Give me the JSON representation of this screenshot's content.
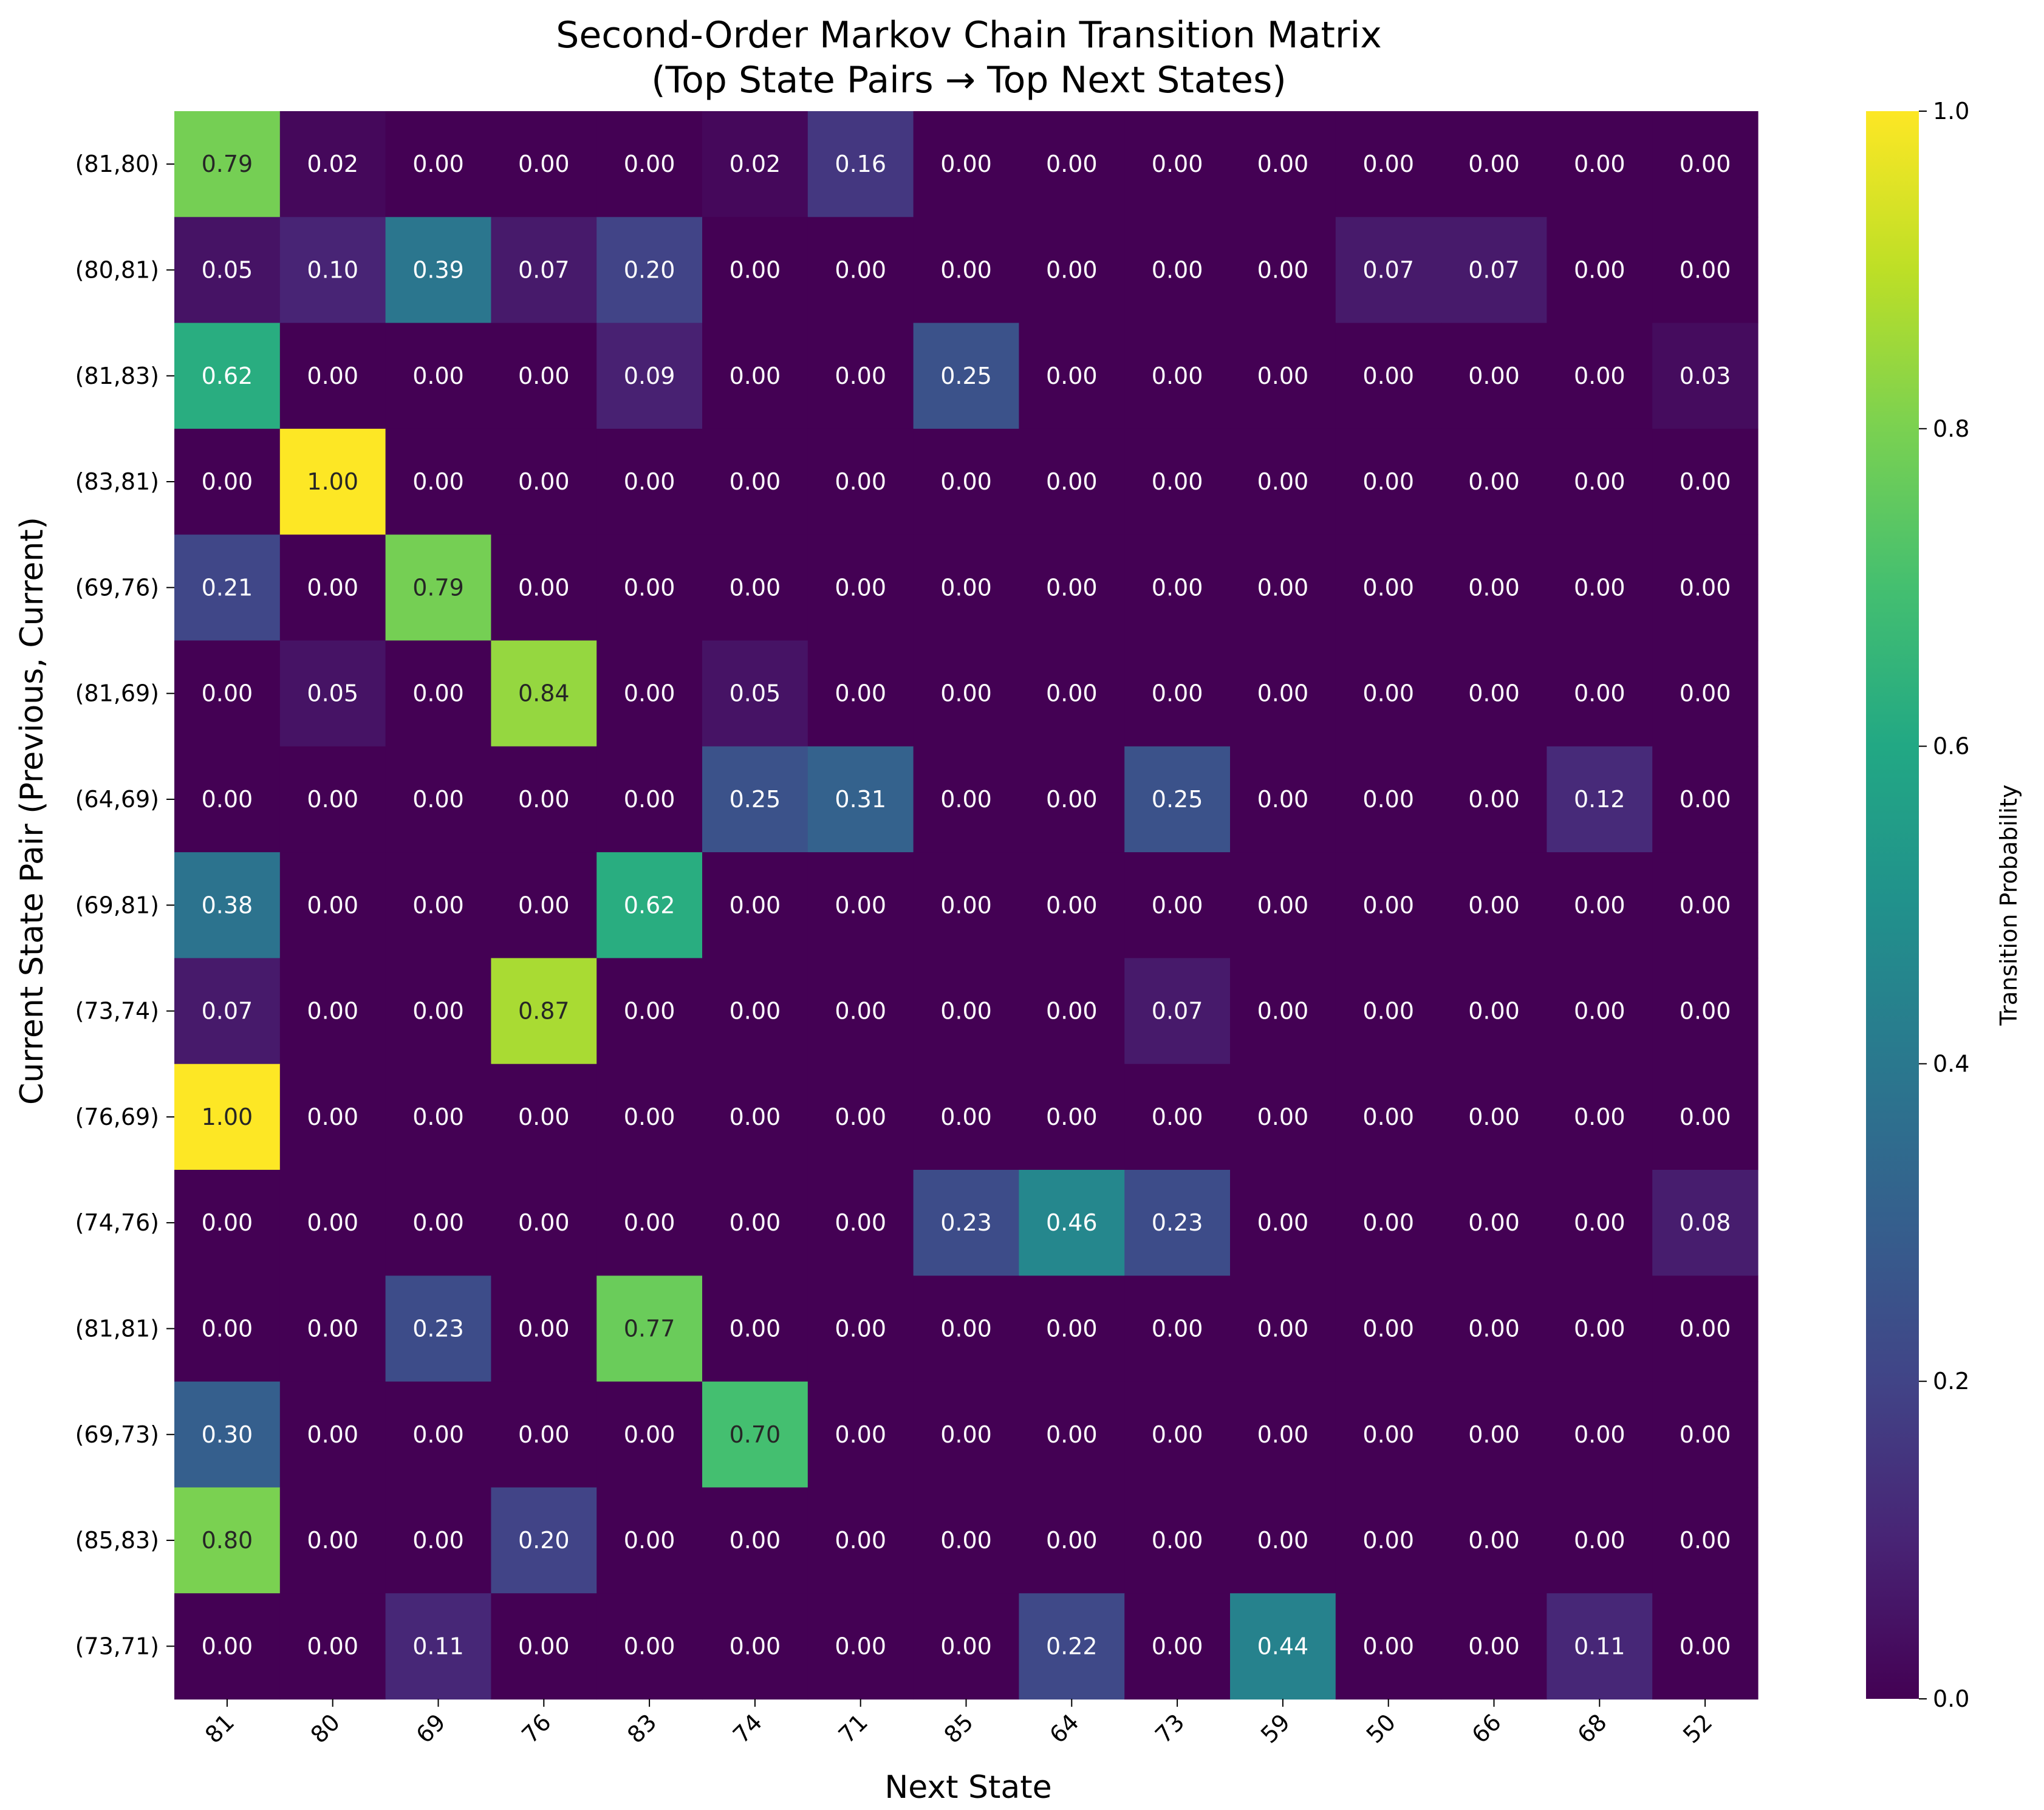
{
  "chart_data": {
    "type": "heatmap",
    "title_lines": [
      "Second-Order Markov Chain Transition Matrix",
      "(Top State Pairs → Top Next States)"
    ],
    "xlabel": "Next State",
    "ylabel": "Current State Pair (Previous, Current)",
    "x_categories": [
      "81",
      "80",
      "69",
      "76",
      "83",
      "74",
      "71",
      "85",
      "64",
      "73",
      "59",
      "50",
      "66",
      "68",
      "52"
    ],
    "y_categories": [
      "(81,80)",
      "(80,81)",
      "(81,83)",
      "(83,81)",
      "(69,76)",
      "(81,69)",
      "(64,69)",
      "(69,81)",
      "(73,74)",
      "(76,69)",
      "(74,76)",
      "(81,81)",
      "(69,73)",
      "(85,83)",
      "(73,71)"
    ],
    "values": [
      [
        0.79,
        0.02,
        0.0,
        0.0,
        0.0,
        0.02,
        0.16,
        0.0,
        0.0,
        0.0,
        0.0,
        0.0,
        0.0,
        0.0,
        0.0
      ],
      [
        0.05,
        0.1,
        0.39,
        0.07,
        0.2,
        0.0,
        0.0,
        0.0,
        0.0,
        0.0,
        0.0,
        0.07,
        0.07,
        0.0,
        0.0
      ],
      [
        0.62,
        0.0,
        0.0,
        0.0,
        0.09,
        0.0,
        0.0,
        0.25,
        0.0,
        0.0,
        0.0,
        0.0,
        0.0,
        0.0,
        0.03
      ],
      [
        0.0,
        1.0,
        0.0,
        0.0,
        0.0,
        0.0,
        0.0,
        0.0,
        0.0,
        0.0,
        0.0,
        0.0,
        0.0,
        0.0,
        0.0
      ],
      [
        0.21,
        0.0,
        0.79,
        0.0,
        0.0,
        0.0,
        0.0,
        0.0,
        0.0,
        0.0,
        0.0,
        0.0,
        0.0,
        0.0,
        0.0
      ],
      [
        0.0,
        0.05,
        0.0,
        0.84,
        0.0,
        0.05,
        0.0,
        0.0,
        0.0,
        0.0,
        0.0,
        0.0,
        0.0,
        0.0,
        0.0
      ],
      [
        0.0,
        0.0,
        0.0,
        0.0,
        0.0,
        0.25,
        0.31,
        0.0,
        0.0,
        0.25,
        0.0,
        0.0,
        0.0,
        0.12,
        0.0
      ],
      [
        0.38,
        0.0,
        0.0,
        0.0,
        0.62,
        0.0,
        0.0,
        0.0,
        0.0,
        0.0,
        0.0,
        0.0,
        0.0,
        0.0,
        0.0
      ],
      [
        0.07,
        0.0,
        0.0,
        0.87,
        0.0,
        0.0,
        0.0,
        0.0,
        0.0,
        0.07,
        0.0,
        0.0,
        0.0,
        0.0,
        0.0
      ],
      [
        1.0,
        0.0,
        0.0,
        0.0,
        0.0,
        0.0,
        0.0,
        0.0,
        0.0,
        0.0,
        0.0,
        0.0,
        0.0,
        0.0,
        0.0
      ],
      [
        0.0,
        0.0,
        0.0,
        0.0,
        0.0,
        0.0,
        0.0,
        0.23,
        0.46,
        0.23,
        0.0,
        0.0,
        0.0,
        0.0,
        0.08
      ],
      [
        0.0,
        0.0,
        0.23,
        0.0,
        0.77,
        0.0,
        0.0,
        0.0,
        0.0,
        0.0,
        0.0,
        0.0,
        0.0,
        0.0,
        0.0
      ],
      [
        0.3,
        0.0,
        0.0,
        0.0,
        0.0,
        0.7,
        0.0,
        0.0,
        0.0,
        0.0,
        0.0,
        0.0,
        0.0,
        0.0,
        0.0
      ],
      [
        0.8,
        0.0,
        0.0,
        0.2,
        0.0,
        0.0,
        0.0,
        0.0,
        0.0,
        0.0,
        0.0,
        0.0,
        0.0,
        0.0,
        0.0
      ],
      [
        0.0,
        0.0,
        0.11,
        0.0,
        0.0,
        0.0,
        0.0,
        0.0,
        0.22,
        0.0,
        0.44,
        0.0,
        0.0,
        0.11,
        0.0
      ]
    ],
    "value_format_decimals": 2,
    "colormap": "viridis",
    "colorbar": {
      "label": "Transition Probability",
      "range": [
        0.0,
        1.0
      ],
      "ticks": [
        "0.0",
        "0.2",
        "0.4",
        "0.6",
        "0.8",
        "1.0"
      ]
    },
    "grid": false
  }
}
